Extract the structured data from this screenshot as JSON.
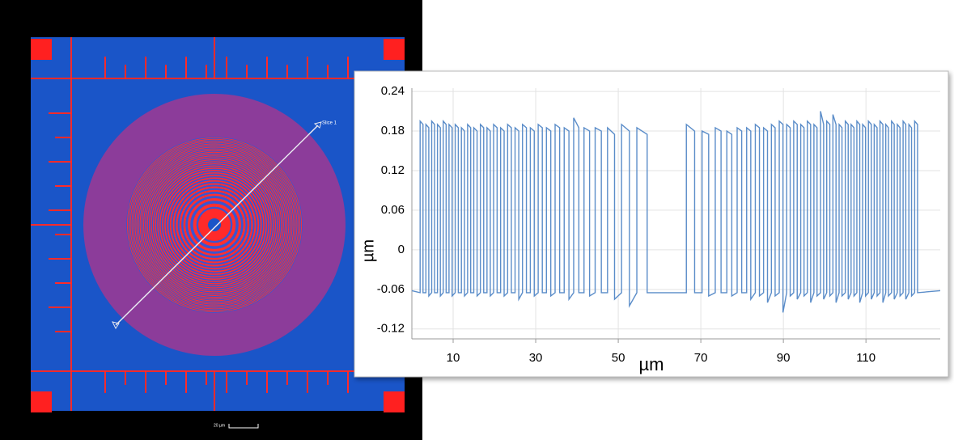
{
  "image": {
    "slice_label": "Slice 1",
    "scale_bar": "20 µm"
  },
  "chart_data": {
    "type": "line",
    "xlabel": "µm",
    "ylabel": "µm",
    "xlim": [
      0,
      128
    ],
    "ylim": [
      -0.135,
      0.245
    ],
    "xticks": [
      10,
      30,
      50,
      70,
      90,
      110
    ],
    "yticks": [
      0.24,
      0.18,
      0.12,
      0.06,
      0,
      -0.06,
      -0.12
    ],
    "grid": true,
    "x": [
      0,
      2.0,
      2.0,
      2.7,
      2.7,
      3.4,
      3.4,
      4.1,
      4.1,
      4.8,
      4.8,
      5.5,
      5.5,
      6.2,
      6.2,
      6.9,
      6.9,
      7.6,
      7.6,
      8.3,
      8.3,
      9.0,
      9.0,
      9.75,
      9.75,
      10.5,
      10.5,
      11.25,
      11.25,
      12.0,
      12.0,
      12.75,
      12.75,
      13.5,
      13.5,
      14.25,
      14.25,
      15.0,
      15.0,
      15.8,
      15.8,
      16.6,
      16.6,
      17.4,
      17.4,
      18.2,
      18.2,
      19.0,
      19.0,
      19.8,
      19.8,
      20.65,
      20.65,
      21.5,
      21.5,
      22.35,
      22.35,
      23.2,
      23.2,
      24.1,
      24.1,
      25.0,
      25.0,
      25.9,
      25.9,
      26.8,
      26.8,
      27.75,
      27.75,
      28.7,
      28.7,
      29.65,
      29.65,
      30.6,
      30.6,
      31.6,
      31.6,
      32.6,
      32.6,
      33.65,
      33.65,
      34.7,
      34.7,
      35.8,
      35.8,
      36.9,
      36.9,
      38.05,
      38.05,
      39.2,
      39.2,
      40.45,
      40.45,
      41.7,
      41.7,
      43.05,
      43.05,
      44.4,
      44.4,
      45.9,
      45.9,
      47.4,
      47.4,
      49.1,
      49.1,
      50.8,
      50.8,
      52.7,
      52.7,
      54.5,
      54.5,
      57.0,
      57.0,
      66.5,
      66.5,
      68.5,
      68.5,
      70.3,
      70.3,
      71.9,
      71.9,
      73.5,
      73.5,
      74.9,
      74.9,
      76.3,
      76.3,
      77.5,
      77.5,
      78.8,
      78.8,
      79.9,
      79.9,
      81.1,
      81.1,
      82.1,
      82.1,
      83.2,
      83.2,
      84.2,
      84.2,
      85.2,
      85.2,
      86.15,
      86.15,
      87.1,
      87.1,
      88.0,
      88.0,
      89.0,
      89.0,
      89.9,
      89.9,
      90.8,
      90.8,
      91.65,
      91.65,
      92.5,
      92.5,
      93.35,
      93.35,
      94.2,
      94.2,
      95.0,
      95.0,
      95.8,
      95.8,
      96.6,
      96.6,
      97.4,
      97.4,
      98.15,
      98.15,
      99.0,
      99.0,
      99.75,
      99.75,
      100.5,
      100.5,
      101.25,
      101.25,
      102.0,
      102.0,
      102.75,
      102.75,
      103.5,
      103.5,
      104.2,
      104.2,
      105.0,
      105.0,
      105.7,
      105.7,
      106.4,
      106.4,
      107.1,
      107.1,
      107.8,
      107.8,
      108.5,
      108.5,
      109.2,
      109.2,
      109.9,
      109.9,
      110.6,
      110.6,
      111.3,
      111.3,
      112.0,
      112.0,
      112.7,
      112.7,
      113.4,
      113.4,
      114.1,
      114.1,
      114.8,
      114.8,
      115.45,
      115.45,
      116.2,
      116.2,
      116.85,
      116.85,
      117.6,
      117.6,
      118.25,
      118.25,
      119.0,
      119.0,
      119.65,
      119.65,
      120.4,
      120.4,
      121.05,
      121.05,
      121.8,
      121.8,
      122.5,
      122.5,
      128
    ],
    "series": [
      {
        "color": "#5b8dc9",
        "values": [
          -0.062,
          -0.065,
          0.195,
          0.19,
          -0.065,
          -0.065,
          0.19,
          0.185,
          -0.07,
          -0.065,
          0.195,
          0.19,
          -0.065,
          -0.065,
          0.19,
          0.185,
          -0.07,
          -0.065,
          0.195,
          0.19,
          -0.065,
          -0.065,
          0.19,
          0.185,
          -0.07,
          -0.065,
          0.19,
          0.185,
          -0.065,
          -0.065,
          0.185,
          0.18,
          -0.07,
          -0.065,
          0.19,
          0.185,
          -0.065,
          -0.065,
          0.185,
          0.18,
          -0.07,
          -0.065,
          0.19,
          0.185,
          -0.065,
          -0.065,
          0.185,
          0.18,
          -0.07,
          -0.065,
          0.19,
          0.185,
          -0.065,
          -0.065,
          0.185,
          0.18,
          -0.07,
          -0.065,
          0.19,
          0.185,
          -0.065,
          -0.065,
          0.185,
          0.18,
          -0.075,
          -0.065,
          0.19,
          0.185,
          -0.065,
          -0.065,
          0.185,
          0.18,
          -0.07,
          -0.065,
          0.19,
          0.185,
          -0.065,
          -0.065,
          0.185,
          0.18,
          -0.07,
          -0.065,
          0.19,
          0.185,
          -0.065,
          -0.065,
          0.185,
          0.18,
          -0.075,
          -0.065,
          0.2,
          0.185,
          -0.065,
          -0.065,
          0.185,
          0.18,
          -0.07,
          -0.065,
          0.185,
          0.18,
          -0.065,
          -0.065,
          0.185,
          0.175,
          -0.075,
          -0.065,
          0.19,
          0.18,
          -0.085,
          -0.065,
          0.185,
          0.175,
          -0.065,
          -0.065,
          0.19,
          0.18,
          -0.065,
          -0.065,
          0.18,
          0.175,
          -0.07,
          -0.065,
          0.185,
          0.18,
          -0.065,
          -0.065,
          0.18,
          0.175,
          -0.07,
          -0.065,
          0.185,
          0.18,
          -0.065,
          -0.065,
          0.185,
          0.18,
          -0.075,
          -0.065,
          0.19,
          0.185,
          -0.07,
          -0.065,
          0.185,
          0.18,
          -0.08,
          -0.065,
          0.19,
          0.185,
          -0.07,
          -0.065,
          0.195,
          0.19,
          -0.095,
          -0.065,
          0.19,
          0.185,
          -0.07,
          -0.065,
          0.195,
          0.19,
          -0.075,
          -0.065,
          0.19,
          0.185,
          -0.07,
          -0.065,
          0.195,
          0.19,
          -0.08,
          -0.065,
          0.19,
          0.185,
          -0.07,
          -0.065,
          0.21,
          0.19,
          -0.075,
          -0.065,
          0.195,
          0.19,
          -0.07,
          -0.065,
          0.205,
          0.19,
          -0.08,
          -0.065,
          0.19,
          0.185,
          -0.07,
          -0.065,
          0.195,
          0.19,
          -0.075,
          -0.065,
          0.19,
          0.185,
          -0.07,
          -0.065,
          0.195,
          0.19,
          -0.08,
          -0.065,
          0.19,
          0.185,
          -0.07,
          -0.065,
          0.195,
          0.19,
          -0.075,
          -0.065,
          0.19,
          0.185,
          -0.07,
          -0.065,
          0.195,
          0.19,
          -0.08,
          -0.065,
          0.19,
          0.185,
          -0.07,
          -0.065,
          0.195,
          0.19,
          -0.075,
          -0.065,
          0.19,
          0.185,
          -0.07,
          -0.065,
          0.195,
          0.19,
          -0.075,
          -0.065,
          0.19,
          0.185,
          -0.07,
          -0.065,
          0.195,
          0.19,
          -0.065,
          -0.062
        ]
      }
    ]
  }
}
